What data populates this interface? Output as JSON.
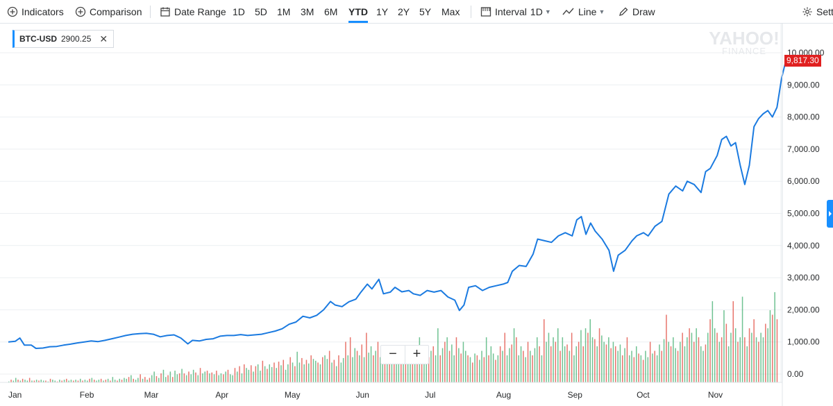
{
  "toolbar": {
    "indicators_label": "Indicators",
    "comparison_label": "Comparison",
    "date_range_label": "Date Range",
    "ranges": [
      "1D",
      "5D",
      "1M",
      "3M",
      "6M",
      "YTD",
      "1Y",
      "2Y",
      "5Y",
      "Max"
    ],
    "active_range": "YTD",
    "interval_label": "Interval",
    "interval_value": "1D",
    "chart_type_label": "Line",
    "draw_label": "Draw",
    "settings_label": "Settings"
  },
  "symbol_chip": {
    "symbol": "BTC-USD",
    "value": "2900.25",
    "close": "✕"
  },
  "watermark": {
    "line1": "YAHOO!",
    "line2": "FINANCE"
  },
  "zoom": {
    "minus": "−",
    "plus": "+"
  },
  "colors": {
    "line": "#1a7ae0",
    "volume_up": "#3fae6d",
    "volume_down": "#e0463b",
    "price_tag": "#e02020",
    "accent": "#188fff",
    "band": "#f5f7f8"
  },
  "chart_data": {
    "type": "line",
    "series": [
      {
        "name": "BTC-USD"
      }
    ],
    "last_price": "9,817.30",
    "y_ticks": [
      "0.00",
      "1,000.00",
      "2,000.00",
      "3,000.00",
      "4,000.00",
      "5,000.00",
      "6,000.00",
      "7,000.00",
      "8,000.00",
      "9,000.00",
      "10,000.00"
    ],
    "ylim": [
      -200,
      10000
    ],
    "x_ticks": [
      "Jan",
      "Feb",
      "Mar",
      "Apr",
      "May",
      "Jun",
      "Jul",
      "Aug",
      "Sep",
      "Oct",
      "Nov"
    ],
    "x_tick_days": [
      0,
      31,
      59,
      90,
      120,
      151,
      181,
      212,
      243,
      273,
      304
    ],
    "x_domain_days": [
      0,
      333
    ],
    "grid": true,
    "price_points": [
      [
        0,
        1000
      ],
      [
        3,
        1020
      ],
      [
        5,
        1120
      ],
      [
        7,
        900
      ],
      [
        10,
        900
      ],
      [
        12,
        800
      ],
      [
        15,
        810
      ],
      [
        18,
        850
      ],
      [
        21,
        860
      ],
      [
        24,
        900
      ],
      [
        27,
        930
      ],
      [
        30,
        970
      ],
      [
        33,
        1000
      ],
      [
        36,
        1030
      ],
      [
        39,
        1010
      ],
      [
        42,
        1050
      ],
      [
        45,
        1100
      ],
      [
        48,
        1150
      ],
      [
        51,
        1200
      ],
      [
        54,
        1240
      ],
      [
        57,
        1260
      ],
      [
        60,
        1270
      ],
      [
        63,
        1240
      ],
      [
        66,
        1160
      ],
      [
        69,
        1200
      ],
      [
        72,
        1220
      ],
      [
        75,
        1120
      ],
      [
        78,
        940
      ],
      [
        80,
        1050
      ],
      [
        83,
        1030
      ],
      [
        86,
        1080
      ],
      [
        89,
        1100
      ],
      [
        92,
        1180
      ],
      [
        95,
        1200
      ],
      [
        98,
        1200
      ],
      [
        101,
        1230
      ],
      [
        104,
        1200
      ],
      [
        107,
        1220
      ],
      [
        110,
        1240
      ],
      [
        113,
        1290
      ],
      [
        116,
        1340
      ],
      [
        119,
        1410
      ],
      [
        122,
        1550
      ],
      [
        125,
        1620
      ],
      [
        128,
        1800
      ],
      [
        131,
        1750
      ],
      [
        134,
        1830
      ],
      [
        137,
        2000
      ],
      [
        140,
        2260
      ],
      [
        142,
        2150
      ],
      [
        145,
        2100
      ],
      [
        148,
        2250
      ],
      [
        151,
        2330
      ],
      [
        153,
        2530
      ],
      [
        156,
        2800
      ],
      [
        158,
        2650
      ],
      [
        161,
        2950
      ],
      [
        163,
        2500
      ],
      [
        166,
        2550
      ],
      [
        168,
        2700
      ],
      [
        171,
        2560
      ],
      [
        174,
        2600
      ],
      [
        176,
        2500
      ],
      [
        179,
        2450
      ],
      [
        182,
        2600
      ],
      [
        185,
        2550
      ],
      [
        188,
        2600
      ],
      [
        191,
        2400
      ],
      [
        194,
        2300
      ],
      [
        196,
        1980
      ],
      [
        198,
        2150
      ],
      [
        200,
        2700
      ],
      [
        203,
        2750
      ],
      [
        206,
        2600
      ],
      [
        209,
        2700
      ],
      [
        212,
        2750
      ],
      [
        215,
        2800
      ],
      [
        217,
        2850
      ],
      [
        219,
        3200
      ],
      [
        222,
        3380
      ],
      [
        225,
        3350
      ],
      [
        228,
        3730
      ],
      [
        230,
        4200
      ],
      [
        233,
        4150
      ],
      [
        236,
        4100
      ],
      [
        239,
        4300
      ],
      [
        242,
        4400
      ],
      [
        245,
        4300
      ],
      [
        247,
        4800
      ],
      [
        249,
        4900
      ],
      [
        251,
        4350
      ],
      [
        253,
        4700
      ],
      [
        255,
        4450
      ],
      [
        258,
        4200
      ],
      [
        261,
        3850
      ],
      [
        263,
        3200
      ],
      [
        265,
        3700
      ],
      [
        268,
        3850
      ],
      [
        271,
        4150
      ],
      [
        273,
        4300
      ],
      [
        276,
        4400
      ],
      [
        278,
        4300
      ],
      [
        281,
        4600
      ],
      [
        284,
        4750
      ],
      [
        287,
        5600
      ],
      [
        290,
        5850
      ],
      [
        293,
        5700
      ],
      [
        295,
        6000
      ],
      [
        298,
        5900
      ],
      [
        301,
        5650
      ],
      [
        303,
        6300
      ],
      [
        305,
        6400
      ],
      [
        308,
        6800
      ],
      [
        310,
        7300
      ],
      [
        312,
        7400
      ],
      [
        314,
        7100
      ],
      [
        316,
        7200
      ],
      [
        318,
        6500
      ],
      [
        320,
        5900
      ],
      [
        322,
        6500
      ],
      [
        324,
        7700
      ],
      [
        326,
        7950
      ],
      [
        328,
        8100
      ],
      [
        330,
        8200
      ],
      [
        332,
        8000
      ],
      [
        334,
        8300
      ],
      [
        336,
        9200
      ],
      [
        338,
        9800
      ],
      [
        340,
        9817
      ]
    ],
    "volume_relative": [
      0.01,
      0.03,
      0.02,
      0.05,
      0.03,
      0.02,
      0.04,
      0.03,
      0.02,
      0.05,
      0.02,
      0.02,
      0.03,
      0.02,
      0.03,
      0.02,
      0.02,
      0.01,
      0.04,
      0.03,
      0.02,
      0.01,
      0.03,
      0.02,
      0.03,
      0.04,
      0.02,
      0.03,
      0.02,
      0.03,
      0.02,
      0.04,
      0.02,
      0.03,
      0.02,
      0.04,
      0.05,
      0.03,
      0.02,
      0.03,
      0.04,
      0.02,
      0.03,
      0.04,
      0.02,
      0.06,
      0.03,
      0.02,
      0.04,
      0.03,
      0.05,
      0.04,
      0.06,
      0.08,
      0.04,
      0.03,
      0.05,
      0.09,
      0.04,
      0.06,
      0.03,
      0.05,
      0.08,
      0.12,
      0.07,
      0.05,
      0.1,
      0.14,
      0.06,
      0.08,
      0.12,
      0.06,
      0.13,
      0.09,
      0.1,
      0.15,
      0.1,
      0.08,
      0.12,
      0.09,
      0.14,
      0.11,
      0.08,
      0.16,
      0.1,
      0.12,
      0.13,
      0.1,
      0.11,
      0.09,
      0.13,
      0.08,
      0.1,
      0.09,
      0.12,
      0.14,
      0.09,
      0.08,
      0.16,
      0.12,
      0.18,
      0.1,
      0.2,
      0.16,
      0.14,
      0.19,
      0.12,
      0.18,
      0.2,
      0.13,
      0.24,
      0.18,
      0.15,
      0.2,
      0.17,
      0.22,
      0.16,
      0.23,
      0.19,
      0.25,
      0.14,
      0.2,
      0.28,
      0.22,
      0.18,
      0.34,
      0.22,
      0.27,
      0.2,
      0.25,
      0.21,
      0.3,
      0.26,
      0.24,
      0.22,
      0.2,
      0.28,
      0.3,
      0.26,
      0.35,
      0.22,
      0.25,
      0.18,
      0.3,
      0.22,
      0.27,
      0.45,
      0.3,
      0.5,
      0.28,
      0.38,
      0.35,
      0.3,
      0.42,
      0.28,
      0.55,
      0.33,
      0.4,
      0.3,
      0.35,
      0.45,
      0.28,
      0.32,
      0.25,
      0.3,
      0.38,
      0.28,
      0.22,
      0.3,
      0.25,
      0.2,
      0.28,
      0.35,
      0.24,
      0.3,
      0.25,
      0.32,
      0.28,
      0.5,
      0.25,
      0.3,
      0.22,
      0.28,
      0.35,
      0.4,
      0.3,
      0.6,
      0.3,
      0.38,
      0.45,
      0.5,
      0.35,
      0.42,
      0.3,
      0.5,
      0.38,
      0.32,
      0.45,
      0.35,
      0.3,
      0.28,
      0.22,
      0.32,
      0.3,
      0.25,
      0.35,
      0.28,
      0.5,
      0.3,
      0.4,
      0.32,
      0.25,
      0.3,
      0.4,
      0.35,
      0.55,
      0.3,
      0.38,
      0.42,
      0.6,
      0.5,
      0.3,
      0.4,
      0.35,
      0.28,
      0.45,
      0.35,
      0.3,
      0.38,
      0.5,
      0.4,
      0.3,
      0.7,
      0.45,
      0.55,
      0.4,
      0.5,
      0.45,
      0.6,
      0.35,
      0.5,
      0.4,
      0.42,
      0.35,
      0.55,
      0.3,
      0.4,
      0.45,
      0.58,
      0.4,
      0.6,
      0.55,
      0.7,
      0.5,
      0.48,
      0.4,
      0.6,
      0.52,
      0.45,
      0.42,
      0.5,
      0.38,
      0.45,
      0.4,
      0.35,
      0.42,
      0.3,
      0.38,
      0.5,
      0.3,
      0.35,
      0.28,
      0.4,
      0.32,
      0.3,
      0.25,
      0.35,
      0.28,
      0.45,
      0.32,
      0.35,
      0.3,
      0.42,
      0.35,
      0.48,
      0.75,
      0.45,
      0.4,
      0.5,
      0.38,
      0.35,
      0.45,
      0.55,
      0.4,
      0.5,
      0.6,
      0.55,
      0.45,
      0.6,
      0.5,
      0.4,
      0.35,
      0.42,
      0.55,
      0.7,
      0.9,
      0.6,
      0.55,
      0.45,
      0.5,
      0.8,
      0.65,
      0.4,
      0.55,
      0.9,
      0.6,
      0.45,
      0.5,
      0.95,
      0.5,
      0.4,
      0.6,
      0.55,
      0.7,
      0.5,
      0.45,
      0.55,
      0.5,
      0.65,
      0.6,
      0.8,
      0.75,
      1.0,
      0.7
    ],
    "volume_colors_up": [
      true,
      false,
      true,
      true,
      false,
      true,
      false,
      true,
      true,
      false,
      true,
      false,
      true,
      false,
      true,
      true,
      false,
      true,
      false,
      true,
      true,
      false,
      true,
      false,
      true,
      false,
      true,
      true,
      false,
      true,
      false,
      true,
      false,
      true,
      true,
      false,
      true,
      false,
      true,
      true,
      false,
      true,
      false,
      true,
      false,
      true,
      true,
      false,
      true,
      false,
      true,
      true,
      false,
      true,
      false,
      true,
      true,
      false,
      true,
      false,
      true,
      false,
      true,
      true,
      false,
      true,
      false,
      true,
      true,
      false,
      true,
      false,
      true,
      true,
      false,
      true,
      false,
      true,
      false,
      true,
      true,
      false,
      true,
      false,
      true,
      true,
      false,
      true,
      false,
      true,
      false,
      true,
      true,
      false,
      true,
      false,
      true,
      true,
      false,
      true,
      false,
      true,
      false,
      true,
      true,
      false,
      true,
      false,
      true,
      true,
      false,
      true,
      false,
      true,
      true,
      false,
      true,
      false,
      true,
      false,
      true,
      true,
      false,
      true,
      false,
      true,
      true,
      false,
      true,
      false,
      true,
      false,
      true,
      true,
      false,
      true,
      false,
      true,
      true,
      false,
      true,
      false,
      true,
      false,
      true,
      true,
      false,
      true,
      false,
      true,
      true,
      false,
      true,
      false,
      true,
      false,
      true,
      true,
      false,
      true,
      false,
      true,
      true,
      false,
      true,
      false,
      true,
      false,
      true,
      true,
      false,
      true,
      false,
      true,
      true,
      false,
      true,
      false,
      true,
      false,
      true,
      true,
      false,
      true,
      false,
      true,
      true,
      false,
      true,
      false,
      true,
      false,
      true,
      true,
      false,
      true,
      false,
      true,
      true,
      false,
      true,
      false,
      true,
      false,
      true,
      true,
      false,
      true,
      false,
      true,
      true,
      false,
      true,
      false,
      true,
      false,
      true,
      true,
      false,
      true,
      false,
      true,
      true,
      false,
      true,
      false,
      true,
      false,
      true,
      true,
      false,
      true,
      false,
      true,
      true,
      false,
      true,
      false,
      true,
      false,
      true,
      true,
      false,
      true,
      false,
      true,
      true,
      false,
      true,
      false,
      true,
      false,
      true,
      true,
      false,
      true,
      false,
      true,
      true,
      false,
      true,
      false,
      true,
      false,
      true,
      true,
      false,
      true,
      false,
      true,
      true,
      false,
      true,
      false,
      true,
      false,
      true,
      true,
      false,
      true,
      false,
      true,
      true,
      false,
      true,
      false,
      true,
      false,
      true,
      true,
      false,
      true,
      false,
      true,
      true,
      false,
      true,
      false,
      true,
      false,
      true,
      true,
      false,
      true,
      false,
      true,
      true,
      false,
      true,
      false,
      true,
      false,
      true,
      true,
      false,
      true,
      false,
      true,
      true,
      false,
      true,
      false,
      true,
      false,
      true,
      false,
      true
    ]
  }
}
